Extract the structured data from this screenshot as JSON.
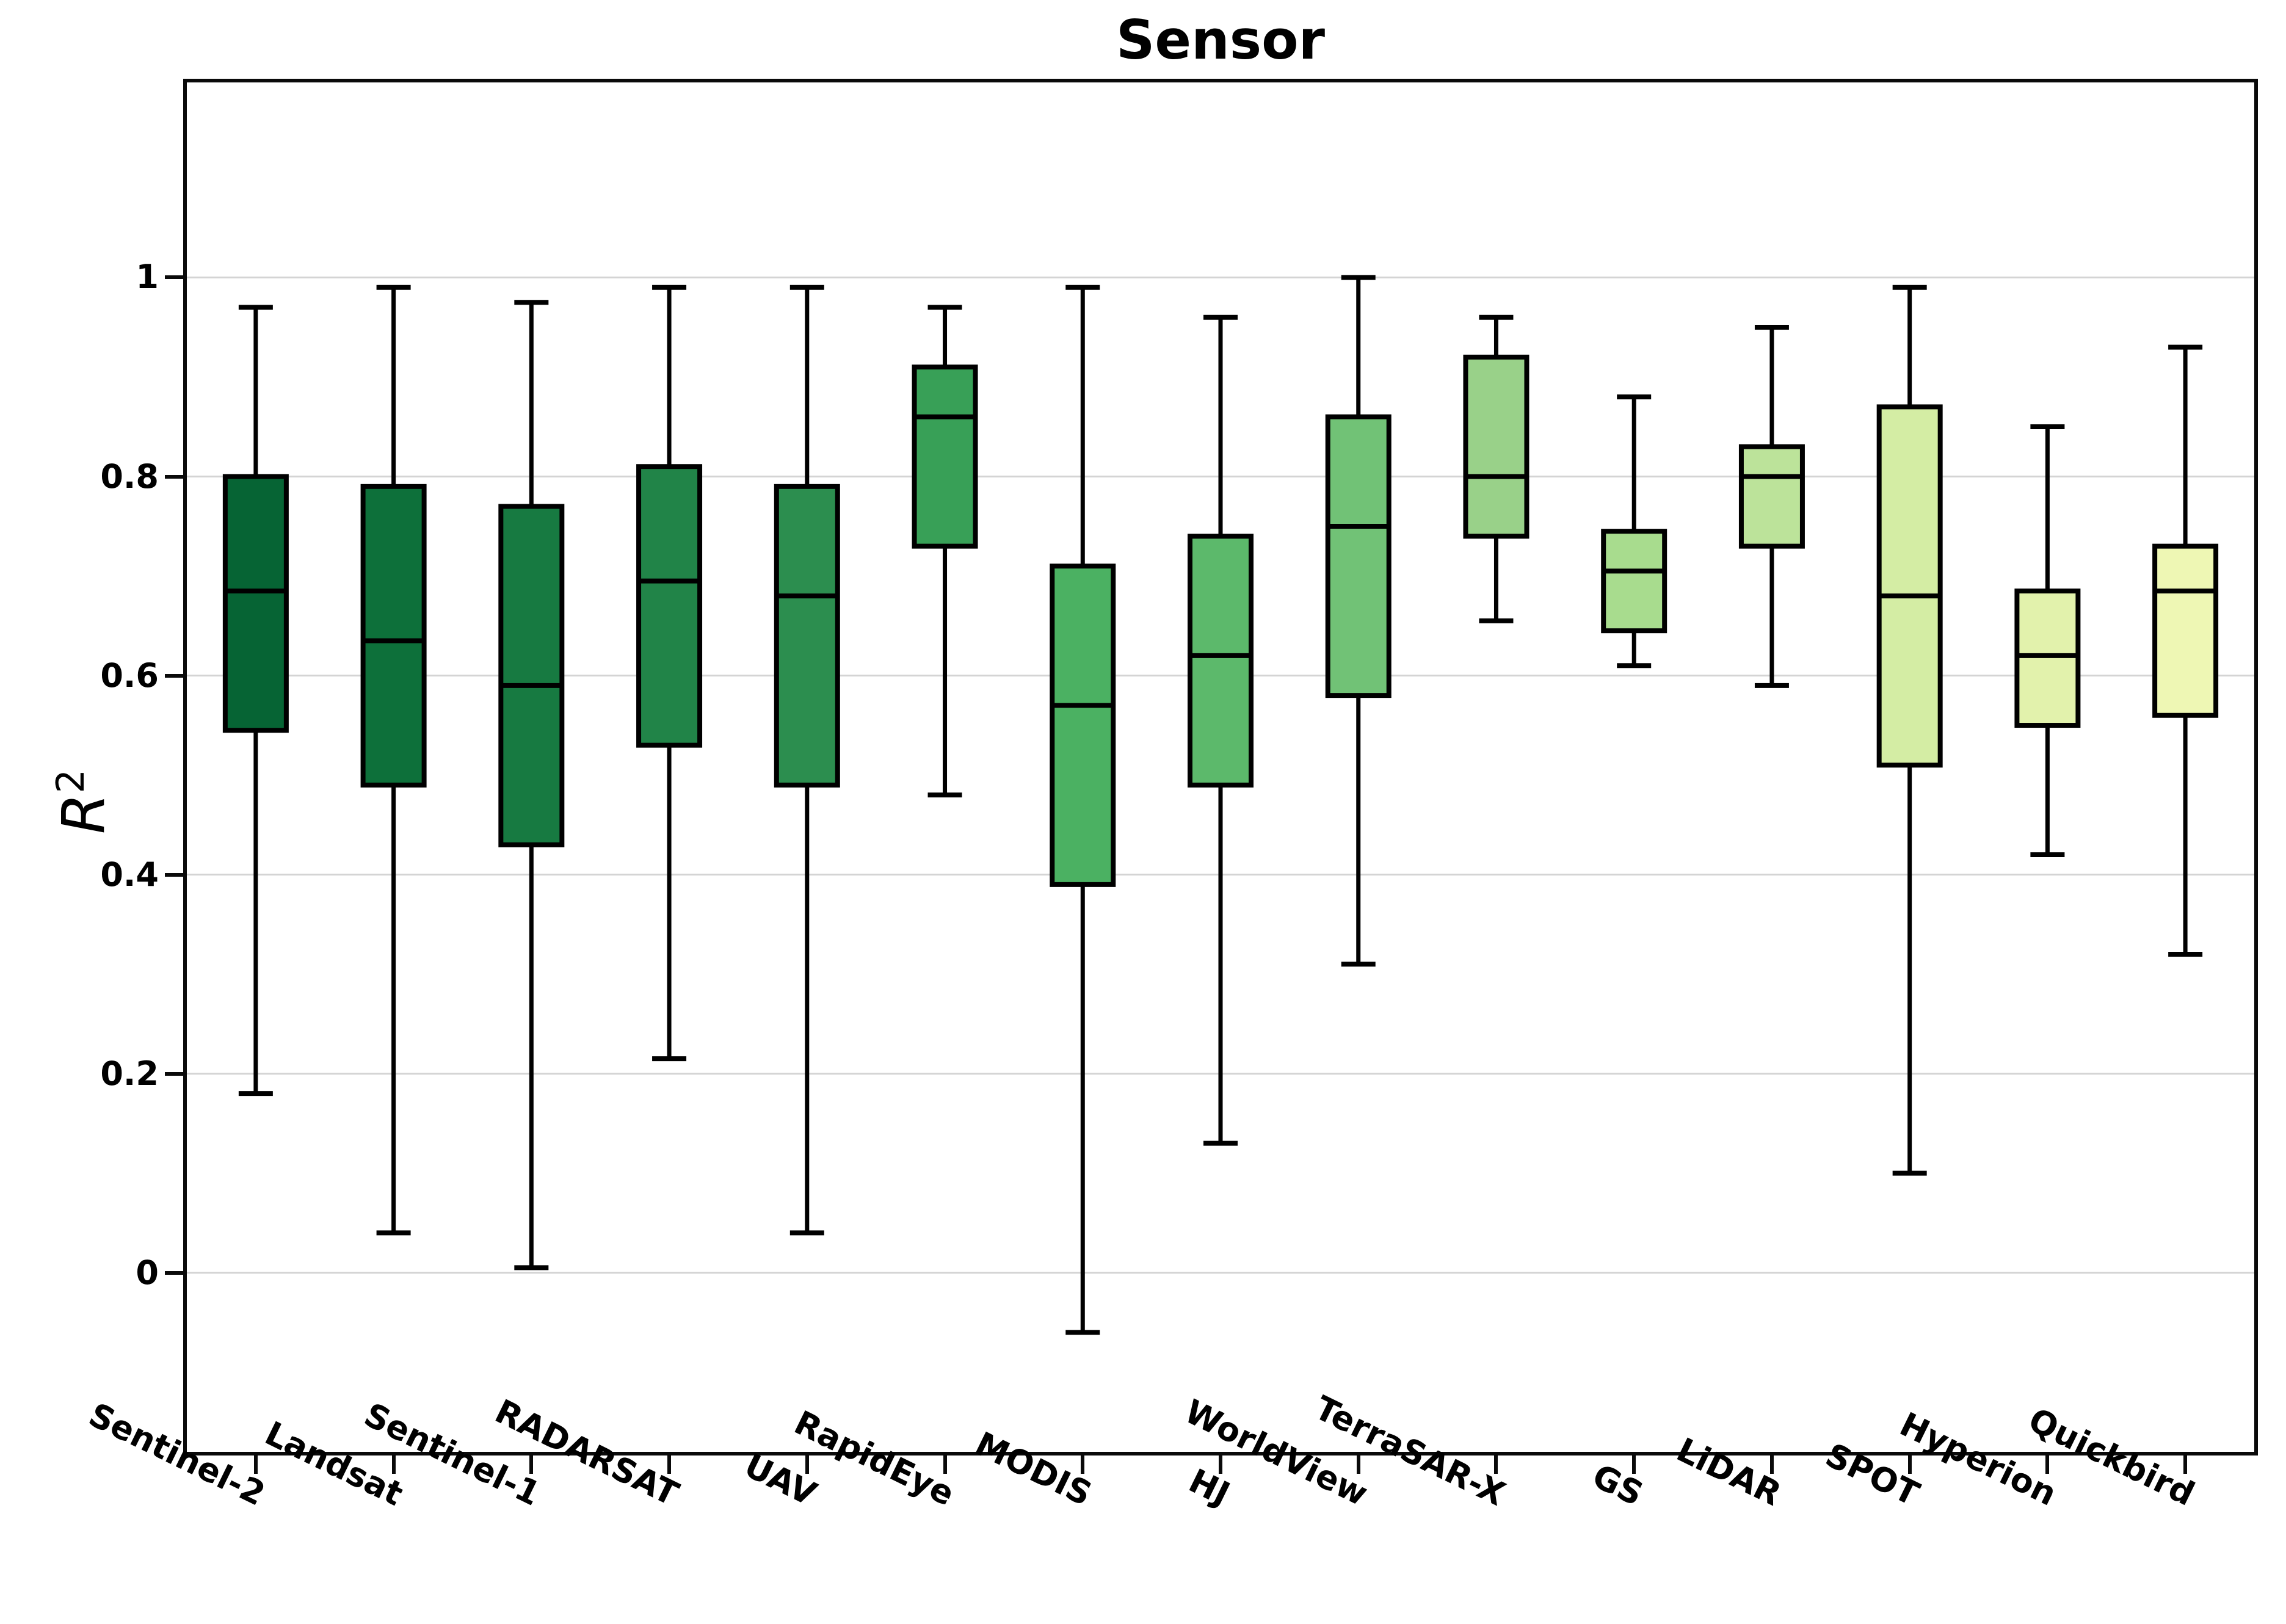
{
  "title": "Sensor",
  "y_axis": {
    "label_base": "R",
    "label_exponent": "2",
    "tick_labels": [
      "1",
      "0.8",
      "0.6",
      "0.4",
      "0.2",
      "0"
    ]
  },
  "chart_data": {
    "type": "box",
    "title": "Sensor",
    "ylabel": "R^2",
    "xlabel": "",
    "ylim": [
      -0.18,
      1.196
    ],
    "yticks": [
      1.0,
      0.8,
      0.6,
      0.4,
      0.2,
      0.0
    ],
    "ytick_labels": [
      "1",
      "0.8",
      "0.6",
      "0.4",
      "0.2",
      "0"
    ],
    "grid": true,
    "grid_color": "#d4d4d4",
    "box_edge_color": "#000000",
    "categories": [
      "Sentinel-2",
      "Landsat",
      "Sentinel-1",
      "RADARSAT",
      "UAV",
      "RapidEye",
      "MODIS",
      "HJ",
      "WorldView",
      "TerraSAR-X",
      "GS",
      "LiDAR",
      "SPOT",
      "Hyperion",
      "Quickbird"
    ],
    "series": [
      {
        "name": "Sentinel-2",
        "color": "#066434",
        "whislo": 0.18,
        "q1": 0.545,
        "med": 0.685,
        "q3": 0.8,
        "whishi": 0.97
      },
      {
        "name": "Landsat",
        "color": "#0d703a",
        "whislo": 0.04,
        "q1": 0.49,
        "med": 0.635,
        "q3": 0.79,
        "whishi": 0.99
      },
      {
        "name": "Sentinel-1",
        "color": "#177a41",
        "whislo": 0.005,
        "q1": 0.43,
        "med": 0.59,
        "q3": 0.77,
        "whishi": 0.975
      },
      {
        "name": "RADARSAT",
        "color": "#218448",
        "whislo": 0.215,
        "q1": 0.53,
        "med": 0.695,
        "q3": 0.81,
        "whishi": 0.99
      },
      {
        "name": "UAV",
        "color": "#2c8e4f",
        "whislo": 0.04,
        "q1": 0.49,
        "med": 0.68,
        "q3": 0.79,
        "whishi": 0.99
      },
      {
        "name": "RapidEye",
        "color": "#38a057",
        "whislo": 0.48,
        "q1": 0.73,
        "med": 0.86,
        "q3": 0.91,
        "whishi": 0.97
      },
      {
        "name": "MODIS",
        "color": "#4bb162",
        "whislo": -0.06,
        "q1": 0.39,
        "med": 0.57,
        "q3": 0.71,
        "whishi": 0.99
      },
      {
        "name": "HJ",
        "color": "#5cb96b",
        "whislo": 0.13,
        "q1": 0.49,
        "med": 0.62,
        "q3": 0.74,
        "whishi": 0.96
      },
      {
        "name": "WorldView",
        "color": "#71c276",
        "whislo": 0.31,
        "q1": 0.58,
        "med": 0.75,
        "q3": 0.86,
        "whishi": 1.0
      },
      {
        "name": "TerraSAR-X",
        "color": "#99d189",
        "whislo": 0.655,
        "q1": 0.74,
        "med": 0.8,
        "q3": 0.92,
        "whishi": 0.96
      },
      {
        "name": "GS",
        "color": "#a8dc8e",
        "whislo": 0.61,
        "q1": 0.645,
        "med": 0.705,
        "q3": 0.745,
        "whishi": 0.88
      },
      {
        "name": "LiDAR",
        "color": "#bce39a",
        "whislo": 0.59,
        "q1": 0.73,
        "med": 0.8,
        "q3": 0.83,
        "whishi": 0.95
      },
      {
        "name": "SPOT",
        "color": "#d4eda4",
        "whislo": 0.1,
        "q1": 0.51,
        "med": 0.68,
        "q3": 0.87,
        "whishi": 0.99
      },
      {
        "name": "Hyperion",
        "color": "#e2f2ac",
        "whislo": 0.42,
        "q1": 0.55,
        "med": 0.62,
        "q3": 0.685,
        "whishi": 0.85
      },
      {
        "name": "Quickbird",
        "color": "#eef7b4",
        "whislo": 0.32,
        "q1": 0.56,
        "med": 0.685,
        "q3": 0.73,
        "whishi": 0.93
      }
    ]
  }
}
